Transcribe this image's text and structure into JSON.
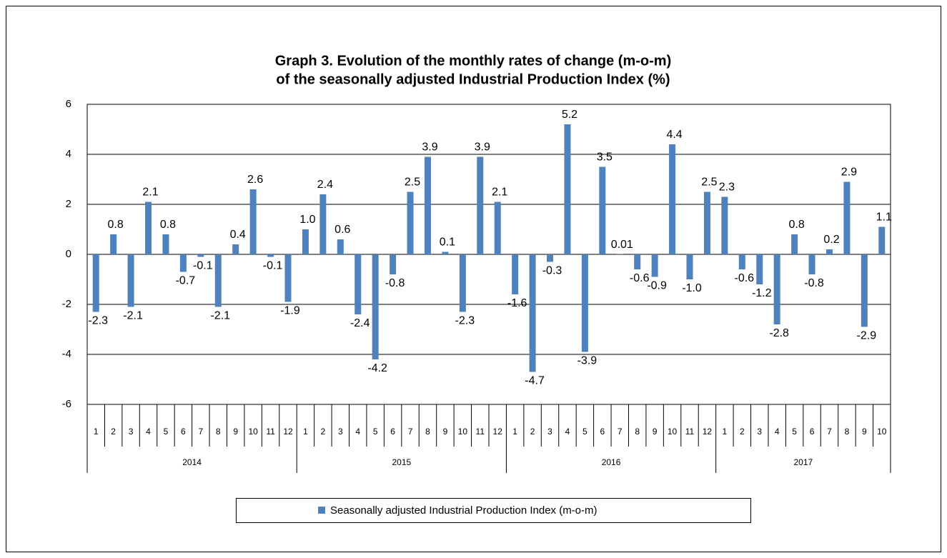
{
  "chart_data": {
    "type": "bar",
    "title": [
      "Graph 3. Evolution of the monthly rates of change (m-o-m)",
      "of the seasonally adjusted Industrial Production Index (%)"
    ],
    "groups": [
      {
        "name": "2014",
        "categories": [
          "1",
          "2",
          "3",
          "4",
          "5",
          "6",
          "7",
          "8",
          "9",
          "10",
          "11",
          "12"
        ]
      },
      {
        "name": "2015",
        "categories": [
          "1",
          "2",
          "3",
          "4",
          "5",
          "6",
          "7",
          "8",
          "9",
          "10",
          "11",
          "12"
        ]
      },
      {
        "name": "2016",
        "categories": [
          "1",
          "2",
          "3",
          "4",
          "5",
          "6",
          "7",
          "8",
          "9",
          "10",
          "11",
          "12"
        ]
      },
      {
        "name": "2017",
        "categories": [
          "1",
          "2",
          "3",
          "4",
          "5",
          "6",
          "7",
          "8",
          "9",
          "10"
        ]
      }
    ],
    "series": [
      {
        "name": "Seasonally adjusted Industrial Production Index (m-o-m)",
        "color": "#4f81bd",
        "values": [
          -2.3,
          0.8,
          -2.1,
          2.1,
          0.8,
          -0.7,
          -0.1,
          -2.1,
          0.4,
          2.6,
          -0.1,
          -1.9,
          1.0,
          2.4,
          0.6,
          -2.4,
          -4.2,
          -0.8,
          2.5,
          3.9,
          0.1,
          -2.3,
          3.9,
          2.1,
          -1.6,
          -4.7,
          -0.3,
          5.2,
          -3.9,
          3.5,
          0.01,
          -0.6,
          -0.9,
          4.4,
          -1.0,
          2.5,
          2.3,
          -0.6,
          -1.2,
          -2.8,
          0.8,
          -0.8,
          0.2,
          2.9,
          -2.9,
          1.1
        ],
        "value_labels": [
          "-2.3",
          "0.8",
          "-2.1",
          "2.1",
          "0.8",
          "-0.7",
          "-0.1",
          "-2.1",
          "0.4",
          "2.6",
          "-0.1",
          "-1.9",
          "1.0",
          "2.4",
          "0.6",
          "-2.4",
          "-4.2",
          "-0.8",
          "2.5",
          "3.9",
          "0.1",
          "-2.3",
          "3.9",
          "2.1",
          "-1.6",
          "-4.7",
          "-0.3",
          "5.2",
          "-3.9",
          "3.5",
          "0.01",
          "-0.6",
          "-0.9",
          "4.4",
          "-1.0",
          "2.5",
          "2.3",
          "-0.6",
          "-1.2",
          "-2.8",
          "0.8",
          "-0.8",
          "0.2",
          "2.9",
          "-2.9",
          "1.1"
        ]
      }
    ],
    "ylim": [
      -6,
      6
    ],
    "yticks": [
      -6,
      -4,
      -2,
      0,
      2,
      4,
      6
    ],
    "grid": true,
    "legend": "bottom"
  }
}
